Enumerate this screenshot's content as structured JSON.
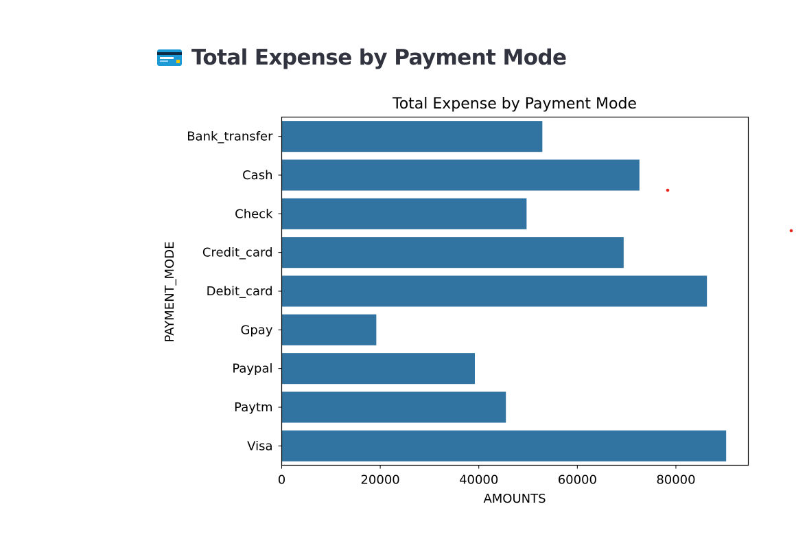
{
  "header": {
    "icon": "credit-card-icon",
    "title": "Total Expense by Payment Mode"
  },
  "colors": {
    "bar": "#3274a1",
    "heading": "#31333f",
    "accent_dot": "#e8241b"
  },
  "chart_data": {
    "type": "bar",
    "orientation": "horizontal",
    "title": "Total Expense by Payment Mode",
    "xlabel": "AMOUNTS",
    "ylabel": "PAYMENT_MODE",
    "categories": [
      "Bank_transfer",
      "Cash",
      "Check",
      "Credit_card",
      "Debit_card",
      "Gpay",
      "Paypal",
      "Paytm",
      "Visa"
    ],
    "values": [
      52900,
      72600,
      49700,
      69400,
      86300,
      19200,
      39200,
      45500,
      90200
    ],
    "xlim": [
      0,
      94700
    ],
    "xticks": [
      0,
      20000,
      40000,
      60000,
      80000
    ],
    "xtick_labels": [
      "0",
      "20000",
      "40000",
      "60000",
      "80000"
    ],
    "grid": false,
    "legend": "none"
  }
}
